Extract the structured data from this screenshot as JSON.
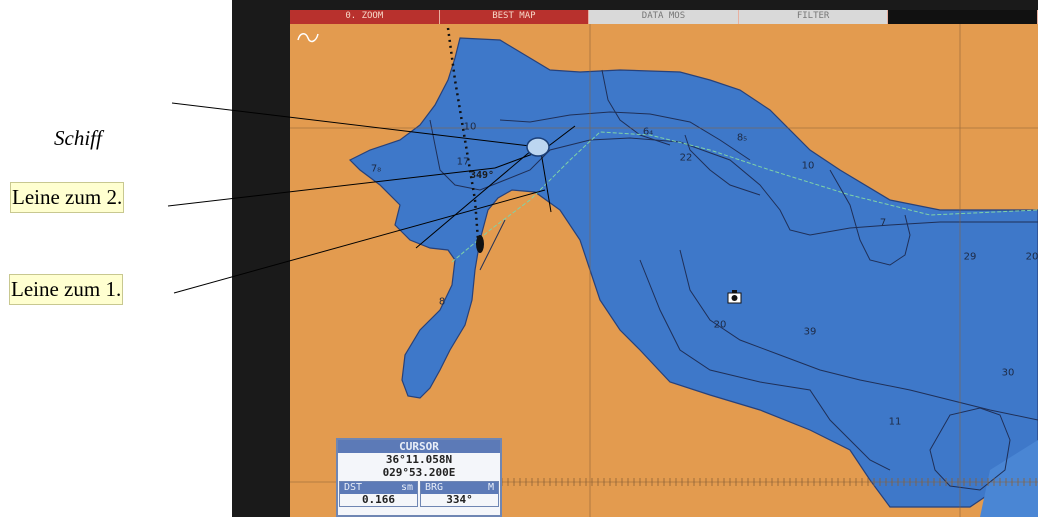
{
  "screen": {
    "toolbar_tabs": [
      "0. ZOOM",
      "BEST MAP",
      "DATA MOS",
      "FILTER",
      ""
    ],
    "depth_labels": [
      "10",
      "6₄",
      "8₅",
      "7₈",
      "17",
      "22",
      "10",
      "7",
      "29",
      "20",
      "8",
      "20",
      "39",
      "30",
      "11"
    ],
    "bearing_text": "349°",
    "cursor_panel": {
      "title": "CURSOR",
      "lat": "36°11.058N",
      "lon": "029°53.200E",
      "dst_label": "DST",
      "dst_unit": "sm",
      "dst_value": "0.166",
      "brg_label": "BRG",
      "brg_unit": "M",
      "brg_value": "334°"
    }
  },
  "annotations": {
    "schiff": "Schiff",
    "leine2": "Leine zum 2.",
    "leine1": "Leine zum 1."
  },
  "colors": {
    "land": "#e39b4f",
    "water": "#3e78c9",
    "contour": "#1f2f57",
    "track": "#7fd3a8",
    "ship_marker": "#bcd6f1"
  }
}
